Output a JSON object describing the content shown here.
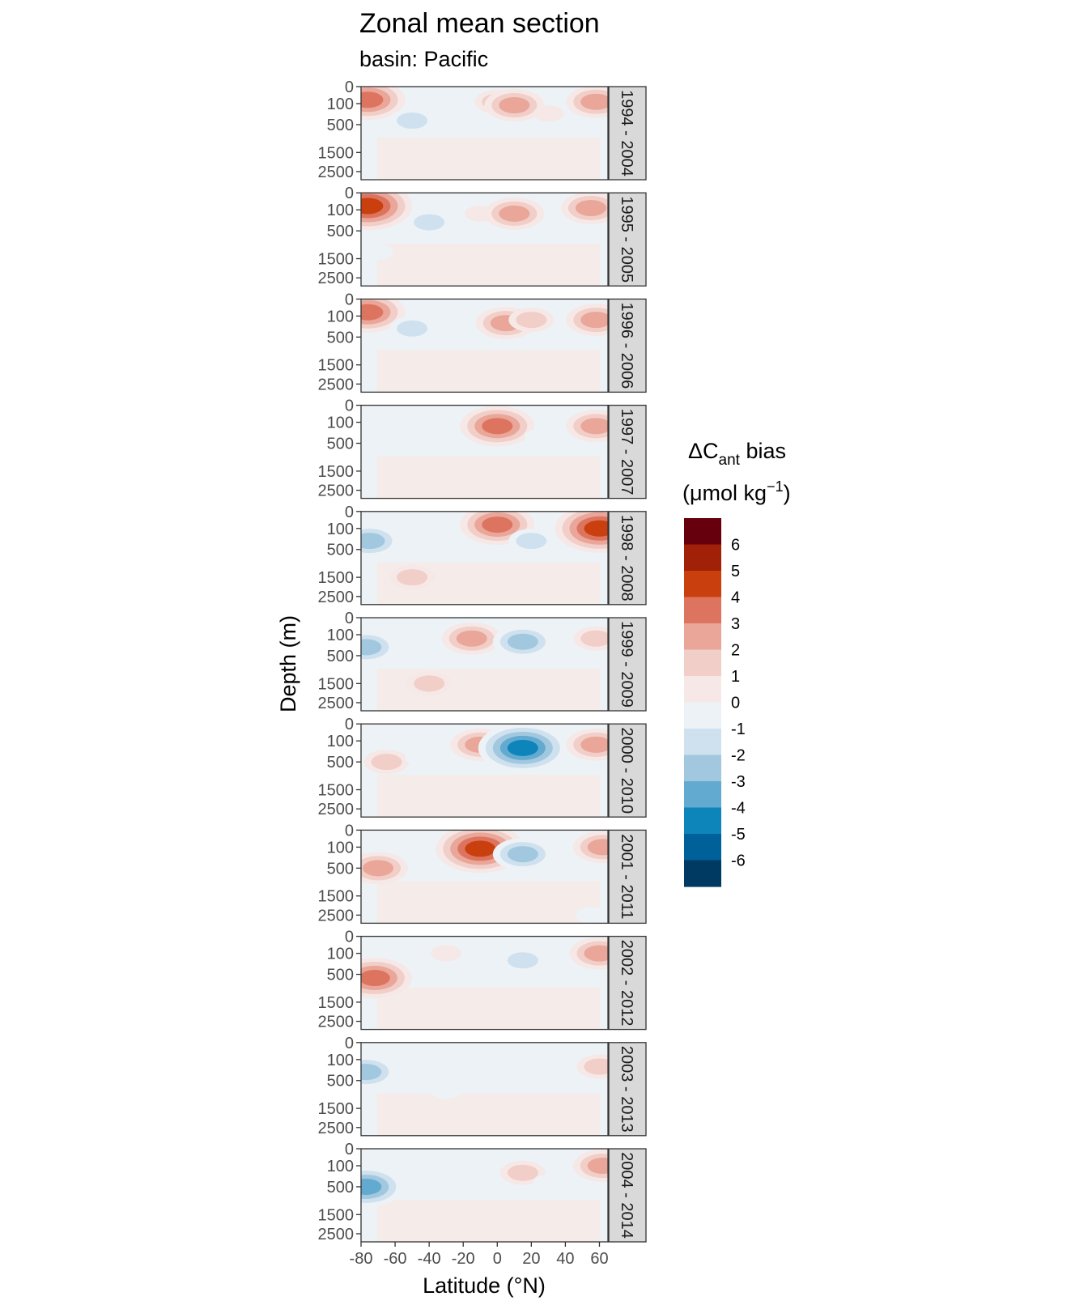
{
  "chart_data": {
    "type": "heatmap",
    "title": "Zonal mean section",
    "subtitle": "basin: Pacific",
    "xlabel": "Latitude (°N)",
    "ylabel": "Depth (m)",
    "xlim": [
      -80,
      65
    ],
    "x_ticks": [
      -80,
      -60,
      -40,
      -20,
      0,
      20,
      40,
      60
    ],
    "y_ticks": [
      0,
      100,
      500,
      1500,
      2500
    ],
    "y_reversed": true,
    "grid": false,
    "legend": {
      "title_prefix": "ΔC",
      "title_sub": "ant",
      "title_suffix": " bias",
      "units_prefix": "(μmol kg",
      "units_sup": "−1",
      "units_suffix": ")",
      "placement": "right",
      "breaks": [
        6,
        5,
        4,
        3,
        2,
        1,
        0,
        -1,
        -2,
        -3,
        -4,
        -5,
        -6
      ],
      "colors": [
        "#67000d",
        "#a12008",
        "#c9400e",
        "#dd7460",
        "#e9a699",
        "#f1cec7",
        "#f6e8e6",
        "#edf2f6",
        "#cfe1ee",
        "#a2c8df",
        "#62aad0",
        "#0d84ba",
        "#00619a",
        "#003a63"
      ]
    },
    "facets": [
      {
        "label": "1994 - 2004",
        "features": [
          {
            "lat": -76,
            "depth": 60,
            "value": 4
          },
          {
            "lat": -50,
            "depth": 400,
            "value": -2
          },
          {
            "lat": -30,
            "depth": 200,
            "value": -1
          },
          {
            "lat": 0,
            "depth": 80,
            "value": 2
          },
          {
            "lat": 10,
            "depth": 120,
            "value": 3
          },
          {
            "lat": 30,
            "depth": 250,
            "value": 1
          },
          {
            "lat": 58,
            "depth": 80,
            "value": 3
          }
        ]
      },
      {
        "label": "1995 - 2005",
        "features": [
          {
            "lat": -76,
            "depth": 60,
            "value": 5
          },
          {
            "lat": -40,
            "depth": 300,
            "value": -2
          },
          {
            "lat": -70,
            "depth": 1200,
            "value": -1
          },
          {
            "lat": -10,
            "depth": 150,
            "value": 1
          },
          {
            "lat": 10,
            "depth": 150,
            "value": 3
          },
          {
            "lat": 55,
            "depth": 80,
            "value": 3
          }
        ]
      },
      {
        "label": "1996 - 2006",
        "features": [
          {
            "lat": -76,
            "depth": 60,
            "value": 4
          },
          {
            "lat": -50,
            "depth": 300,
            "value": -2
          },
          {
            "lat": -20,
            "depth": 250,
            "value": -1
          },
          {
            "lat": 5,
            "depth": 200,
            "value": 3
          },
          {
            "lat": 20,
            "depth": 150,
            "value": 2
          },
          {
            "lat": 58,
            "depth": 150,
            "value": 3
          }
        ]
      },
      {
        "label": "1997 - 2007",
        "features": [
          {
            "lat": -70,
            "depth": 400,
            "value": -1
          },
          {
            "lat": -40,
            "depth": 300,
            "value": -1
          },
          {
            "lat": 0,
            "depth": 150,
            "value": 4
          },
          {
            "lat": 25,
            "depth": 350,
            "value": -1
          },
          {
            "lat": 58,
            "depth": 150,
            "value": 3
          }
        ]
      },
      {
        "label": "1998 - 2008",
        "features": [
          {
            "lat": -75,
            "depth": 300,
            "value": -3
          },
          {
            "lat": -50,
            "depth": 1500,
            "value": 2
          },
          {
            "lat": -20,
            "depth": 300,
            "value": -1
          },
          {
            "lat": 0,
            "depth": 60,
            "value": 4
          },
          {
            "lat": 20,
            "depth": 300,
            "value": -2
          },
          {
            "lat": 60,
            "depth": 100,
            "value": 5
          }
        ]
      },
      {
        "label": "1999 - 2009",
        "features": [
          {
            "lat": -77,
            "depth": 300,
            "value": -3
          },
          {
            "lat": -40,
            "depth": 1500,
            "value": 2
          },
          {
            "lat": -15,
            "depth": 150,
            "value": 3
          },
          {
            "lat": 15,
            "depth": 200,
            "value": -3
          },
          {
            "lat": 58,
            "depth": 150,
            "value": 2
          }
        ]
      },
      {
        "label": "2000 - 2010",
        "features": [
          {
            "lat": -65,
            "depth": 500,
            "value": 2
          },
          {
            "lat": -45,
            "depth": 400,
            "value": -1
          },
          {
            "lat": -10,
            "depth": 150,
            "value": 3
          },
          {
            "lat": 15,
            "depth": 200,
            "value": -5
          },
          {
            "lat": 58,
            "depth": 150,
            "value": 3
          }
        ]
      },
      {
        "label": "2001 - 2011",
        "features": [
          {
            "lat": -70,
            "depth": 500,
            "value": 3
          },
          {
            "lat": -40,
            "depth": 300,
            "value": -1
          },
          {
            "lat": -10,
            "depth": 120,
            "value": 5
          },
          {
            "lat": 15,
            "depth": 200,
            "value": -3
          },
          {
            "lat": 55,
            "depth": 2500,
            "value": -1
          },
          {
            "lat": 62,
            "depth": 100,
            "value": 3
          }
        ]
      },
      {
        "label": "2002 - 2012",
        "features": [
          {
            "lat": -72,
            "depth": 600,
            "value": 4
          },
          {
            "lat": -30,
            "depth": 100,
            "value": 1
          },
          {
            "lat": 15,
            "depth": 200,
            "value": -2
          },
          {
            "lat": 60,
            "depth": 100,
            "value": 3
          }
        ]
      },
      {
        "label": "2003 - 2013",
        "features": [
          {
            "lat": -77,
            "depth": 300,
            "value": -3
          },
          {
            "lat": -30,
            "depth": 800,
            "value": -1
          },
          {
            "lat": -10,
            "depth": 200,
            "value": -1
          },
          {
            "lat": 20,
            "depth": 250,
            "value": -1
          },
          {
            "lat": 60,
            "depth": 200,
            "value": 2
          }
        ]
      },
      {
        "label": "2004 - 2014",
        "features": [
          {
            "lat": -77,
            "depth": 500,
            "value": -4
          },
          {
            "lat": -30,
            "depth": 300,
            "value": -1
          },
          {
            "lat": 15,
            "depth": 200,
            "value": 2
          },
          {
            "lat": 30,
            "depth": 400,
            "value": -1
          },
          {
            "lat": 62,
            "depth": 100,
            "value": 3
          }
        ]
      }
    ]
  }
}
